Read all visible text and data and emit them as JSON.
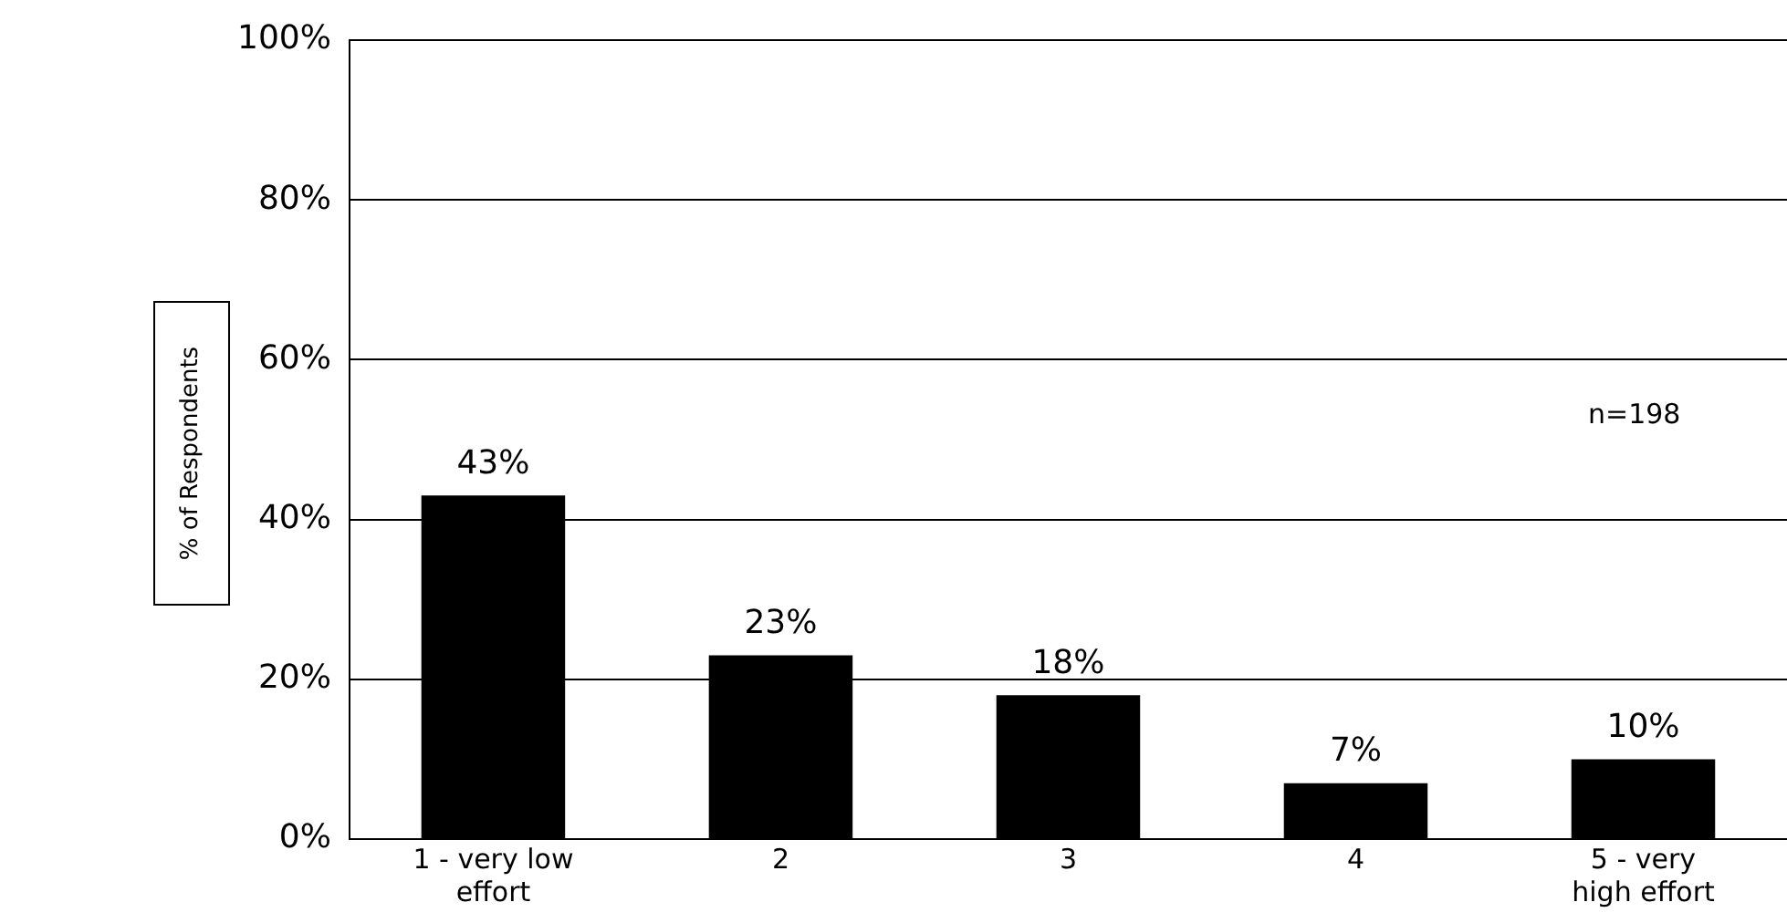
{
  "chart_data": {
    "type": "bar",
    "ylabel": "% of Respondents",
    "categories": [
      "1 - very low effort",
      "2",
      "3",
      "4",
      "5 - very high effort"
    ],
    "values": [
      43,
      23,
      18,
      7,
      10
    ],
    "color": "#000000",
    "value_labels": [
      "43%",
      "23%",
      "18%",
      "7%",
      "10%"
    ],
    "ylim": [
      0,
      100
    ],
    "yticks": [
      {
        "value": 0,
        "label": "0%"
      },
      {
        "value": 20,
        "label": "20%"
      },
      {
        "value": 40,
        "label": "40%"
      },
      {
        "value": 60,
        "label": "60%"
      },
      {
        "value": 80,
        "label": "80%"
      },
      {
        "value": 100,
        "label": "100%"
      }
    ],
    "grid": "y",
    "legend": false,
    "annotations": [
      "n=198"
    ]
  }
}
